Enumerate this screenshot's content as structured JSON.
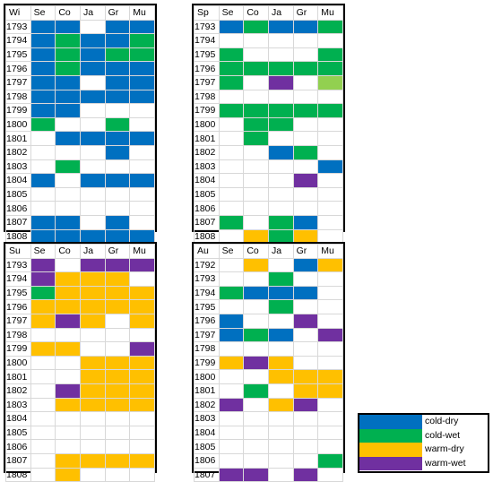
{
  "colors": {
    "B": "#0070c0",
    "G": "#00b050",
    "Y": "#ffc000",
    "P": "#7030a0",
    "L": "#92d050",
    "W": "#ffffff"
  },
  "columns": [
    "Se",
    "Co",
    "Ja",
    "Gr",
    "Mu"
  ],
  "legend": [
    {
      "key": "B",
      "label": "cold-dry"
    },
    {
      "key": "G",
      "label": "cold-wet"
    },
    {
      "key": "Y",
      "label": "warm-dry"
    },
    {
      "key": "P",
      "label": "warm-wet"
    }
  ],
  "panels": [
    {
      "id": "winter",
      "season": "Wi",
      "rows": [
        {
          "year": "1793",
          "cells": "BBWBB"
        },
        {
          "year": "1794",
          "cells": "BGBBG"
        },
        {
          "year": "1795",
          "cells": "BGBGG"
        },
        {
          "year": "1796",
          "cells": "BGBBB"
        },
        {
          "year": "1797",
          "cells": "BBWBB"
        },
        {
          "year": "1798",
          "cells": "BBBBB"
        },
        {
          "year": "1799",
          "cells": "BBWWW"
        },
        {
          "year": "1800",
          "cells": "GWWGW"
        },
        {
          "year": "1801",
          "cells": "WBBBB"
        },
        {
          "year": "1802",
          "cells": "WWWBW"
        },
        {
          "year": "1803",
          "cells": "WGWWW"
        },
        {
          "year": "1804",
          "cells": "BWBBB"
        },
        {
          "year": "1805",
          "cells": "WWWWW"
        },
        {
          "year": "1806",
          "cells": "WWWWW"
        },
        {
          "year": "1807",
          "cells": "BBWBW"
        },
        {
          "year": "1808",
          "cells": "BBBBB"
        }
      ]
    },
    {
      "id": "spring",
      "season": "Sp",
      "rows": [
        {
          "year": "1793",
          "cells": "BGBBG"
        },
        {
          "year": "1794",
          "cells": "WWWWW"
        },
        {
          "year": "1795",
          "cells": "GWWWG"
        },
        {
          "year": "1796",
          "cells": "GGGGG"
        },
        {
          "year": "1797",
          "cells": "GWPWL"
        },
        {
          "year": "1798",
          "cells": "WWWWW"
        },
        {
          "year": "1799",
          "cells": "GGGGG"
        },
        {
          "year": "1800",
          "cells": "WGGWW"
        },
        {
          "year": "1801",
          "cells": "WGWWW"
        },
        {
          "year": "1802",
          "cells": "WWBGW"
        },
        {
          "year": "1803",
          "cells": "WWWWB"
        },
        {
          "year": "1804",
          "cells": "WWWPW"
        },
        {
          "year": "1805",
          "cells": "WWWWW"
        },
        {
          "year": "1806",
          "cells": "WWWWW"
        },
        {
          "year": "1807",
          "cells": "GWGBW"
        },
        {
          "year": "1808",
          "cells": "WYGYW"
        }
      ]
    },
    {
      "id": "summer",
      "season": "Su",
      "rows": [
        {
          "year": "1793",
          "cells": "PWPPP"
        },
        {
          "year": "1794",
          "cells": "PYYYW"
        },
        {
          "year": "1795",
          "cells": "GYYYY"
        },
        {
          "year": "1796",
          "cells": "YYYYY"
        },
        {
          "year": "1797",
          "cells": "YPYWY"
        },
        {
          "year": "1798",
          "cells": "WWWWW"
        },
        {
          "year": "1799",
          "cells": "YYWWP"
        },
        {
          "year": "1800",
          "cells": "WWYYY"
        },
        {
          "year": "1801",
          "cells": "WWYYY"
        },
        {
          "year": "1802",
          "cells": "WPYYY"
        },
        {
          "year": "1803",
          "cells": "WYYYY"
        },
        {
          "year": "1804",
          "cells": "WWWWW"
        },
        {
          "year": "1805",
          "cells": "WWWWW"
        },
        {
          "year": "1806",
          "cells": "WWWWW"
        },
        {
          "year": "1807",
          "cells": "WYYYY"
        },
        {
          "year": "1808",
          "cells": "WYWWW"
        }
      ]
    },
    {
      "id": "autumn",
      "season": "Au",
      "rows": [
        {
          "year": "1792",
          "cells": "WYWBY"
        },
        {
          "year": "1793",
          "cells": "WWGWW"
        },
        {
          "year": "1794",
          "cells": "GBBBW"
        },
        {
          "year": "1795",
          "cells": "WWGWW"
        },
        {
          "year": "1796",
          "cells": "BWWPW"
        },
        {
          "year": "1797",
          "cells": "BGBWP"
        },
        {
          "year": "1798",
          "cells": "WWWWW"
        },
        {
          "year": "1799",
          "cells": "YPYWW"
        },
        {
          "year": "1800",
          "cells": "WWYYY"
        },
        {
          "year": "1801",
          "cells": "WGWYY"
        },
        {
          "year": "1802",
          "cells": "PWYPW"
        },
        {
          "year": "1803",
          "cells": "WWWWW"
        },
        {
          "year": "1804",
          "cells": "WWWWW"
        },
        {
          "year": "1805",
          "cells": "WWWWW"
        },
        {
          "year": "1806",
          "cells": "WWWWG"
        },
        {
          "year": "1807",
          "cells": "PPWPW"
        }
      ]
    }
  ]
}
